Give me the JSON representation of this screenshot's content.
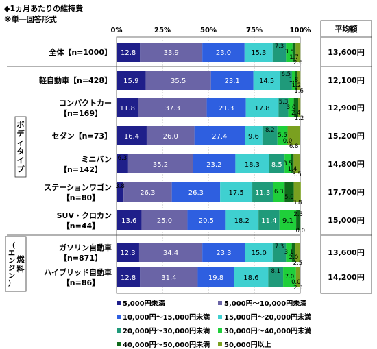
{
  "title": "◆1ヵ月あたりの維持費",
  "subtitle": "※単一回答形式",
  "avg_header": "平均額",
  "group_labels": {
    "body": "ボディタイプ",
    "engine_paren": "（エンジン）",
    "engine": "燃料"
  },
  "chart_data": {
    "type": "bar",
    "stacked": true,
    "orientation": "horizontal",
    "xlim": [
      0,
      100
    ],
    "x_ticks": [
      "0%",
      "25%",
      "50%",
      "75%",
      "100%"
    ],
    "grid": true,
    "legend_position": "bottom",
    "categories": [
      {
        "line1": "全体【n=1000】",
        "line2": "",
        "avg": "13,600円"
      },
      {
        "line1": "軽自動車【n=428】",
        "line2": "",
        "avg": "12,100円"
      },
      {
        "line1": "コンパクトカー",
        "line2": "【n=169】",
        "avg": "12,900円"
      },
      {
        "line1": "セダン【n=73】",
        "line2": "",
        "avg": "15,200円"
      },
      {
        "line1": "ミニバン",
        "line2": "【n=142】",
        "avg": "14,800円"
      },
      {
        "line1": "ステーションワゴン",
        "line2": "【n=80】",
        "avg": "17,700円"
      },
      {
        "line1": "SUV・クロカン",
        "line2": "【n=44】",
        "avg": "15,000円"
      },
      {
        "line1": "ガソリン自動車",
        "line2": "【n=871】",
        "avg": "13,600円"
      },
      {
        "line1": "ハイブリッド自動車",
        "line2": "【n=86】",
        "avg": "14,200円"
      }
    ],
    "series": [
      {
        "name": "5,000円未満",
        "color": "#1f1f8a",
        "values": [
          12.8,
          15.9,
          11.8,
          16.4,
          6.3,
          3.8,
          13.6,
          12.3,
          12.8
        ]
      },
      {
        "name": "5,000円～10,000円未満",
        "color": "#6a64a6",
        "values": [
          33.9,
          35.5,
          37.3,
          26.0,
          35.2,
          26.3,
          25.0,
          34.4,
          31.4
        ]
      },
      {
        "name": "10,000円～15,000円未満",
        "color": "#2e5fe0",
        "values": [
          23.0,
          23.1,
          21.3,
          27.4,
          23.2,
          26.3,
          20.5,
          23.3,
          19.8
        ]
      },
      {
        "name": "15,000円～20,000円未満",
        "color": "#3fd0d0",
        "values": [
          15.3,
          14.5,
          17.8,
          9.6,
          18.3,
          17.5,
          18.2,
          15.0,
          18.6
        ]
      },
      {
        "name": "20,000円～30,000円未満",
        "color": "#1f9a7a",
        "values": [
          7.3,
          6.5,
          5.3,
          8.2,
          8.5,
          11.3,
          11.4,
          7.3,
          8.1
        ]
      },
      {
        "name": "30,000円～40,000円未満",
        "color": "#1fcf3a",
        "values": [
          3.5,
          1.8,
          3.0,
          5.5,
          3.5,
          6.3,
          9.1,
          3.1,
          7.0
        ]
      },
      {
        "name": "40,000円～50,000円未満",
        "color": "#0f6a1a",
        "values": [
          1.7,
          1.2,
          2.4,
          0.0,
          1.4,
          5.0,
          2.3,
          2.0,
          0.0
        ]
      },
      {
        "name": "50,000円以上",
        "color": "#7aa020",
        "values": [
          2.6,
          1.6,
          1.2,
          6.8,
          3.5,
          3.8,
          0.0,
          2.5,
          2.3
        ]
      }
    ]
  }
}
